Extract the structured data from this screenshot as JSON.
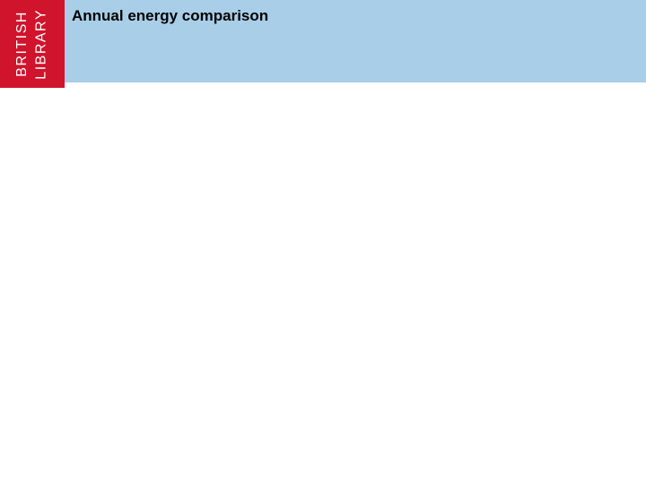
{
  "logo": {
    "line1": "BRITISH",
    "line2": "LIBRARY",
    "background_color": "#cf142b",
    "text_color": "#ffffff"
  },
  "header": {
    "title": "Annual energy comparison",
    "background_color": "#a9cfe8",
    "title_color": "#000000"
  },
  "page": {
    "background_color": "#ffffff"
  }
}
